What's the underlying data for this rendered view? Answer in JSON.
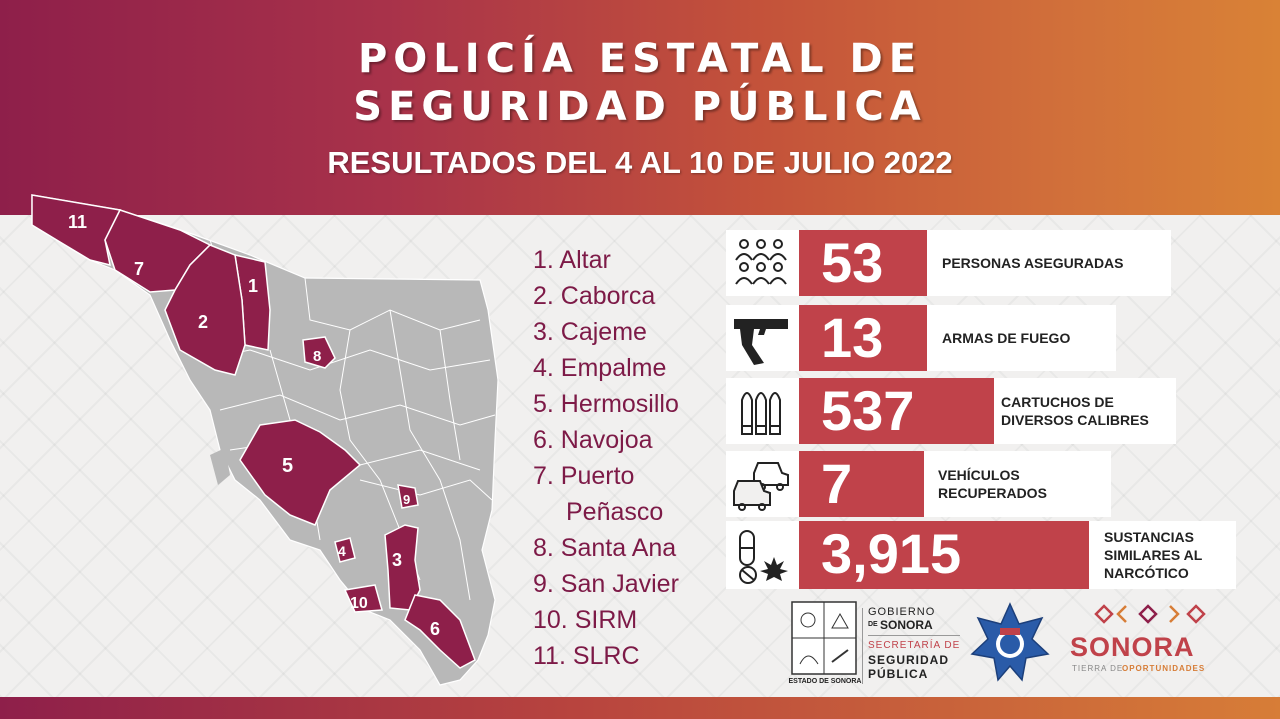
{
  "header": {
    "title_line1": "POLICÍA ESTATAL DE",
    "title_line2": "SEGURIDAD PÚBLICA",
    "subtitle": "RESULTADOS DEL 4 AL 10 DE JULIO 2022"
  },
  "map": {
    "labels": [
      "11",
      "7",
      "1",
      "2",
      "8",
      "5",
      "9",
      "3",
      "4",
      "10",
      "6"
    ]
  },
  "municipalities": [
    "1. Altar",
    "2. Caborca",
    "3. Cajeme",
    "4. Empalme",
    "5. Hermosillo",
    "6. Navojoa",
    "7. Puerto",
    "Peñasco",
    "8. Santa Ana",
    "9. San Javier",
    "10. SIRM",
    "11. SLRC"
  ],
  "stats": [
    {
      "icon": "people-icon",
      "value": "53",
      "label": "PERSONAS ASEGURADAS"
    },
    {
      "icon": "gun-icon",
      "value": "13",
      "label": "ARMAS DE FUEGO"
    },
    {
      "icon": "bullets-icon",
      "value": "537",
      "label": "CARTUCHOS DE DIVERSOS CALIBRES"
    },
    {
      "icon": "cars-icon",
      "value": "7",
      "label": "VEHÍCULOS RECUPERADOS"
    },
    {
      "icon": "drugs-icon",
      "value": "3,915",
      "label": "SUSTANCIAS SIMILARES AL NARCÓTICO"
    }
  ],
  "logos": {
    "seal_caption": "ESTADO DE SONORA",
    "gobierno_line1": "GOBIERNO",
    "gobierno_de": "DE",
    "gobierno_line2": "SONORA",
    "secretaria_line1": "SECRETARÍA DE",
    "secretaria_line2": "SEGURIDAD",
    "secretaria_line3": "PÚBLICA",
    "sonora_brand": "SONORA",
    "sonora_tagline_1": "TIERRA DE",
    "sonora_tagline_2": "OPORTUNIDADES"
  },
  "colors": {
    "wine": "#8e1f4a",
    "stat_red": "#c0424a",
    "map_gray": "#b8b8b8",
    "legend_text": "#7d1a47"
  }
}
